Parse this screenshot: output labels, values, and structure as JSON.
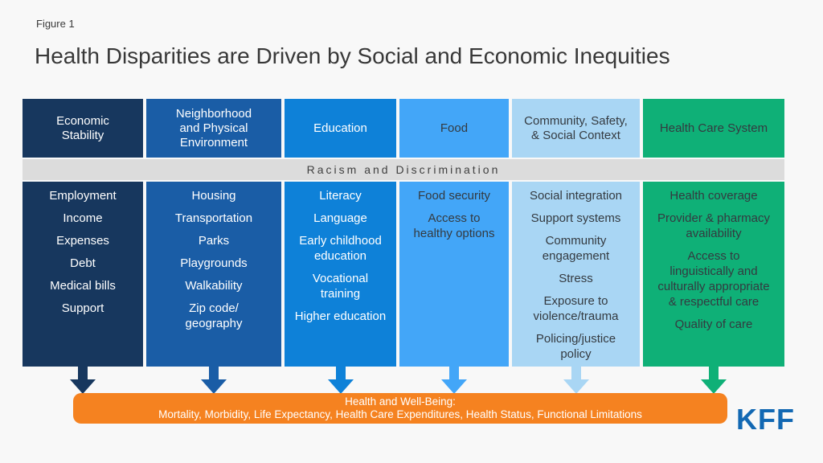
{
  "figure_label": "Figure 1",
  "title": "Health Disparities are Driven by Social and Economic Inequities",
  "background_color": "#f8f8f8",
  "band": {
    "label": "Racism and Discrimination",
    "color": "#dcdcdc",
    "text_color": "#3f3f3f"
  },
  "columns": [
    {
      "header": "Economic\nStability",
      "color": "#17375e",
      "text_color": "#ffffff",
      "items": [
        "Employment",
        "Income",
        "Expenses",
        "Debt",
        "Medical bills",
        "Support"
      ]
    },
    {
      "header": "Neighborhood\nand Physical\nEnvironment",
      "color": "#1a5da6",
      "text_color": "#ffffff",
      "items": [
        "Housing",
        "Transportation",
        "Parks",
        "Playgrounds",
        "Walkability",
        "Zip code/\ngeography"
      ]
    },
    {
      "header": "Education",
      "color": "#0e81d8",
      "text_color": "#ffffff",
      "items": [
        "Literacy",
        "Language",
        "Early childhood\neducation",
        "Vocational\ntraining",
        "Higher education"
      ]
    },
    {
      "header": "Food",
      "color": "#43a6f8",
      "text_color": "#343a40",
      "items": [
        "Food security",
        "Access to\nhealthy options"
      ]
    },
    {
      "header": "Community, Safety,\n& Social Context",
      "color": "#a9d6f4",
      "text_color": "#343a40",
      "items": [
        "Social integration",
        "Support systems",
        "Community\nengagement",
        "Stress",
        "Exposure to\nviolence/trauma",
        "Policing/justice\npolicy"
      ]
    },
    {
      "header": "Health Care System",
      "color": "#0fb077",
      "text_color": "#343a40",
      "items": [
        "Health coverage",
        "Provider & pharmacy\navailability",
        "Access to\nlinguistically and\nculturally appropriate\n& respectful care",
        "Quality of care"
      ]
    }
  ],
  "outcome_bar": {
    "line1": "Health and Well-Being:",
    "line2": "Mortality, Morbidity, Life Expectancy, Health Care Expenditures, Health Status, Functional Limitations",
    "color": "#f58220",
    "text_color": "#ffffff"
  },
  "logo": {
    "text": "KFF",
    "color": "#1268b3"
  }
}
